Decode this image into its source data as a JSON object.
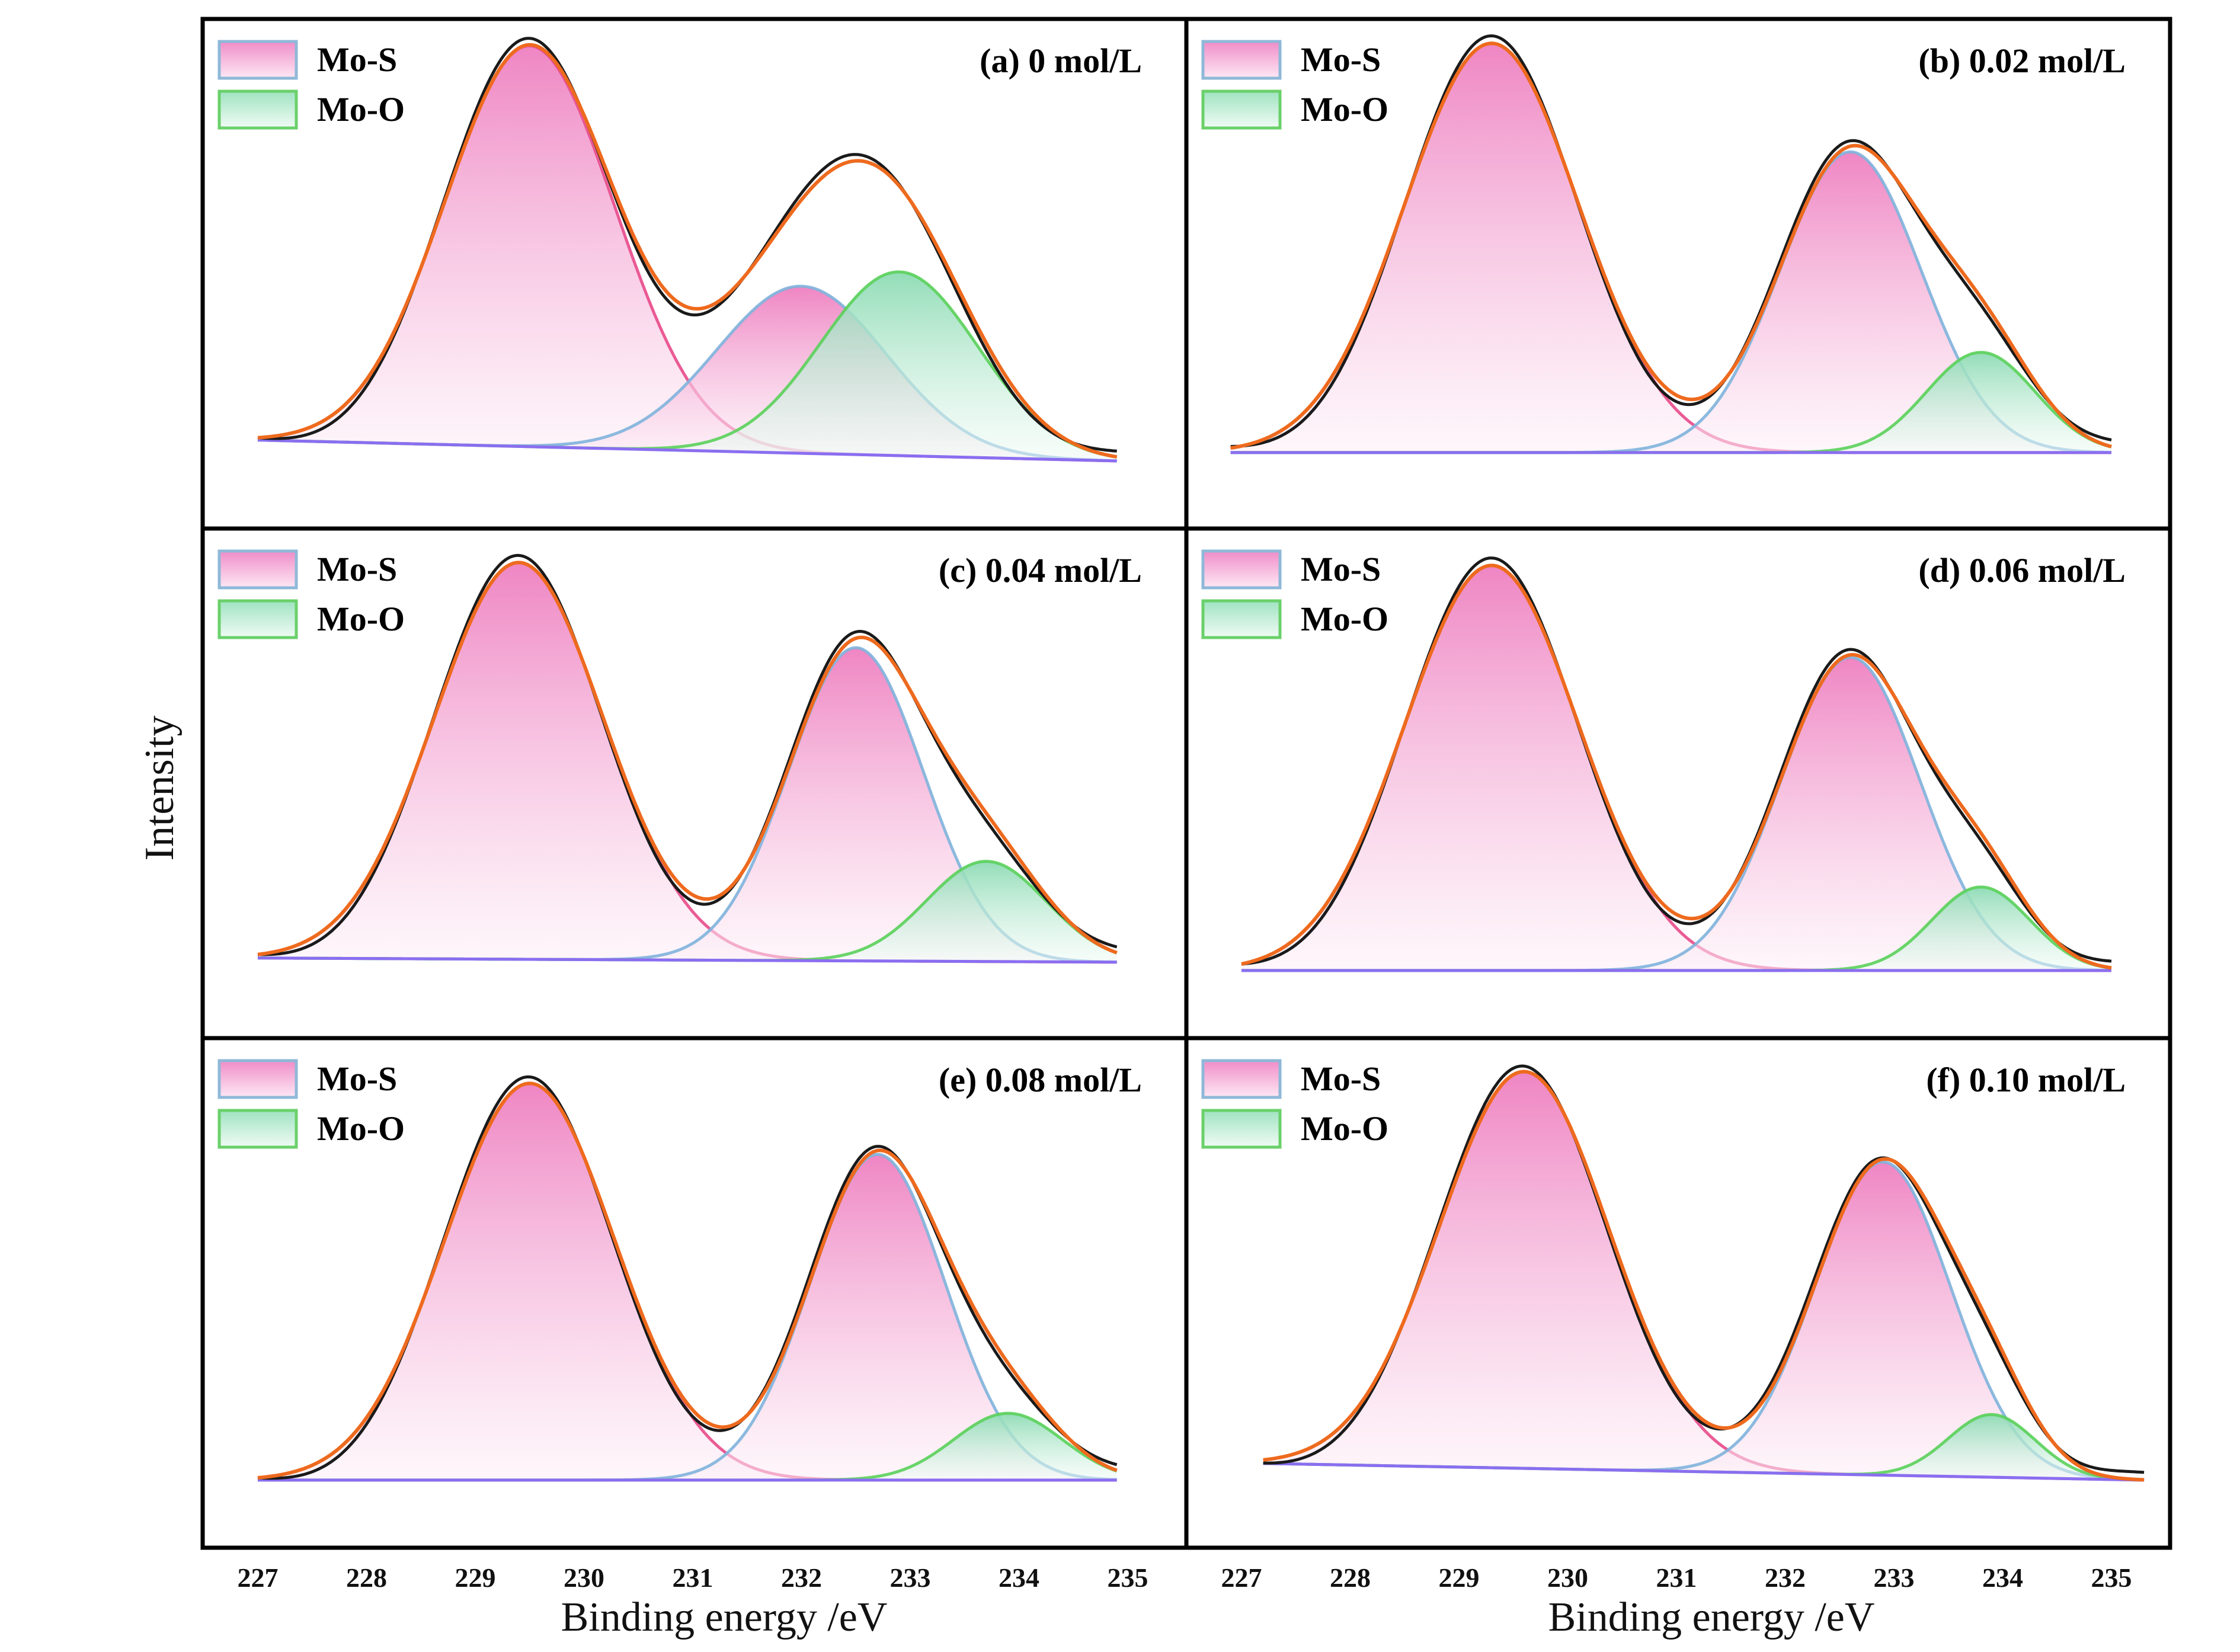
{
  "figure": {
    "ylabel": "Intensity",
    "xlabel_left": "Binding energy /eV",
    "xlabel_right": "Binding energy /eV",
    "xticks": [
      227,
      228,
      229,
      230,
      231,
      232,
      233,
      234,
      235
    ]
  },
  "legend": [
    {
      "label": "Mo-S",
      "stroke": "#8fb8d8",
      "fill_top": "#f08cc8",
      "fill_bottom": "#fde8f4"
    },
    {
      "label": "Mo-O",
      "stroke": "#6ad06a",
      "fill_top": "#9fe3c0",
      "fill_bottom": "#f0fbf5"
    }
  ],
  "colors": {
    "raw": "#1a1a1a",
    "envelope": "#ee6a1e",
    "baseline": "#8a6ef0",
    "mos_peak1_line": "#e84a8a",
    "mos_peak2_line": "#7fb2dc",
    "moo_line": "#5ad05a"
  },
  "chart_data": [
    {
      "type": "line",
      "title": "(a) 0 mol/L",
      "xlabel": "Binding energy /eV",
      "ylabel": "Intensity",
      "xlim": [
        226.9,
        235.3
      ],
      "ylim": [
        0,
        1.05
      ],
      "baseline": [
        [
          227.0,
          0.07
        ],
        [
          234.9,
          0.02
        ]
      ],
      "series": [
        {
          "name": "Mo-S",
          "center": 229.5,
          "height": 0.96,
          "width": 0.78
        },
        {
          "name": "Mo-S",
          "center": 232.0,
          "height": 0.4,
          "width": 0.78
        },
        {
          "name": "Mo-O",
          "center": 232.9,
          "height": 0.44,
          "width": 0.72
        }
      ]
    },
    {
      "type": "line",
      "title": "(b) 0.02 mol/L",
      "xlabel": "Binding energy /eV",
      "ylabel": "Intensity",
      "xlim": [
        226.9,
        235.3
      ],
      "ylim": [
        0,
        1.05
      ],
      "baseline": [
        [
          226.9,
          0.04
        ],
        [
          235.0,
          0.04
        ]
      ],
      "series": [
        {
          "name": "Mo-S",
          "center": 229.3,
          "height": 0.98,
          "width": 0.8
        },
        {
          "name": "Mo-S",
          "center": 232.6,
          "height": 0.72,
          "width": 0.65
        },
        {
          "name": "Mo-O",
          "center": 233.8,
          "height": 0.24,
          "width": 0.5
        }
      ]
    },
    {
      "type": "line",
      "title": "(c) 0.04 mol/L",
      "xlabel": "Binding energy /eV",
      "ylabel": "Intensity",
      "xlim": [
        226.9,
        235.3
      ],
      "ylim": [
        0,
        1.05
      ],
      "baseline": [
        [
          227.0,
          0.05
        ],
        [
          234.9,
          0.04
        ]
      ],
      "series": [
        {
          "name": "Mo-S",
          "center": 229.4,
          "height": 0.95,
          "width": 0.78
        },
        {
          "name": "Mo-S",
          "center": 232.5,
          "height": 0.75,
          "width": 0.62
        },
        {
          "name": "Mo-O",
          "center": 233.7,
          "height": 0.24,
          "width": 0.55
        }
      ]
    },
    {
      "type": "line",
      "title": "(d) 0.06 mol/L",
      "xlabel": "Binding energy /eV",
      "ylabel": "Intensity",
      "xlim": [
        226.9,
        235.3
      ],
      "ylim": [
        0,
        1.05
      ],
      "baseline": [
        [
          227.0,
          0.02
        ],
        [
          235.0,
          0.02
        ]
      ],
      "series": [
        {
          "name": "Mo-S",
          "center": 229.3,
          "height": 0.97,
          "width": 0.8
        },
        {
          "name": "Mo-S",
          "center": 232.6,
          "height": 0.75,
          "width": 0.64
        },
        {
          "name": "Mo-O",
          "center": 233.8,
          "height": 0.2,
          "width": 0.45
        }
      ]
    },
    {
      "type": "line",
      "title": "(e) 0.08 mol/L",
      "xlabel": "Binding energy /eV",
      "ylabel": "Intensity",
      "xlim": [
        226.9,
        235.3
      ],
      "ylim": [
        0,
        1.05
      ],
      "baseline": [
        [
          227.0,
          0.02
        ],
        [
          234.9,
          0.02
        ]
      ],
      "series": [
        {
          "name": "Mo-S",
          "center": 229.5,
          "height": 0.95,
          "width": 0.78
        },
        {
          "name": "Mo-S",
          "center": 232.7,
          "height": 0.78,
          "width": 0.62
        },
        {
          "name": "Mo-O",
          "center": 233.9,
          "height": 0.16,
          "width": 0.5
        }
      ]
    },
    {
      "type": "line",
      "title": "(f) 0.10 mol/L",
      "xlabel": "Binding energy /eV",
      "ylabel": "Intensity",
      "xlim": [
        226.9,
        235.3
      ],
      "ylim": [
        0,
        1.05
      ],
      "baseline": [
        [
          227.2,
          0.06
        ],
        [
          235.3,
          0.02
        ]
      ],
      "series": [
        {
          "name": "Mo-S",
          "center": 229.6,
          "height": 0.95,
          "width": 0.78
        },
        {
          "name": "Mo-S",
          "center": 232.9,
          "height": 0.75,
          "width": 0.62
        },
        {
          "name": "Mo-O",
          "center": 233.9,
          "height": 0.15,
          "width": 0.4
        }
      ]
    }
  ]
}
